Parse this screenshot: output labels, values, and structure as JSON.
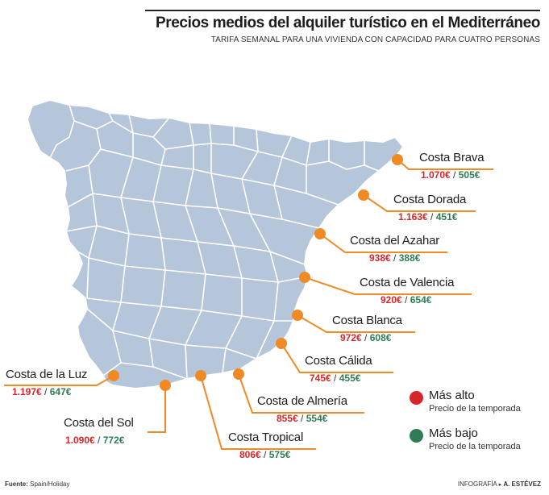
{
  "title": "Precios medios del alquiler turístico en el Mediterráneo",
  "subtitle": "TARIFA SEMANAL PARA UNA VIVIENDA CON CAPACIDAD PARA CUATRO PERSONAS",
  "colors": {
    "land": "#b5c6db",
    "borders": "#ffffff",
    "marker": "#f08a24",
    "leader": "#f08a24",
    "high": "#d7262a",
    "low": "#2e7d54"
  },
  "locations": [
    {
      "name": "Costa Brava",
      "high": "1.070€",
      "low": "505€"
    },
    {
      "name": "Costa Dorada",
      "high": "1.163€",
      "low": "451€"
    },
    {
      "name": "Costa del Azahar",
      "high": "938€",
      "low": "388€"
    },
    {
      "name": "Costa de Valencia",
      "high": "920€",
      "low": "654€"
    },
    {
      "name": "Costa Blanca",
      "high": "972€",
      "low": "608€"
    },
    {
      "name": "Costa Cálida",
      "high": "745€",
      "low": "455€"
    },
    {
      "name": "Costa de Almería",
      "high": "855€",
      "low": "554€"
    },
    {
      "name": "Costa Tropical",
      "high": "806€",
      "low": "575€"
    },
    {
      "name": "Costa del Sol",
      "high": "1.090€",
      "low": "772€"
    },
    {
      "name": "Costa de la Luz",
      "high": "1.197€",
      "low": "647€"
    }
  ],
  "separator": "/",
  "legend": {
    "high_title": "Más alto",
    "high_desc": "Precio de la temporada",
    "low_title": "Más bajo",
    "low_desc": "Precio de la temporada"
  },
  "footer": {
    "source_label": "Fuente:",
    "source_value": "Spain/Holiday",
    "credit_label": "INFOGRAFÍA",
    "credit_arrow": "▸",
    "credit_author": "A. ESTÉVEZ"
  }
}
